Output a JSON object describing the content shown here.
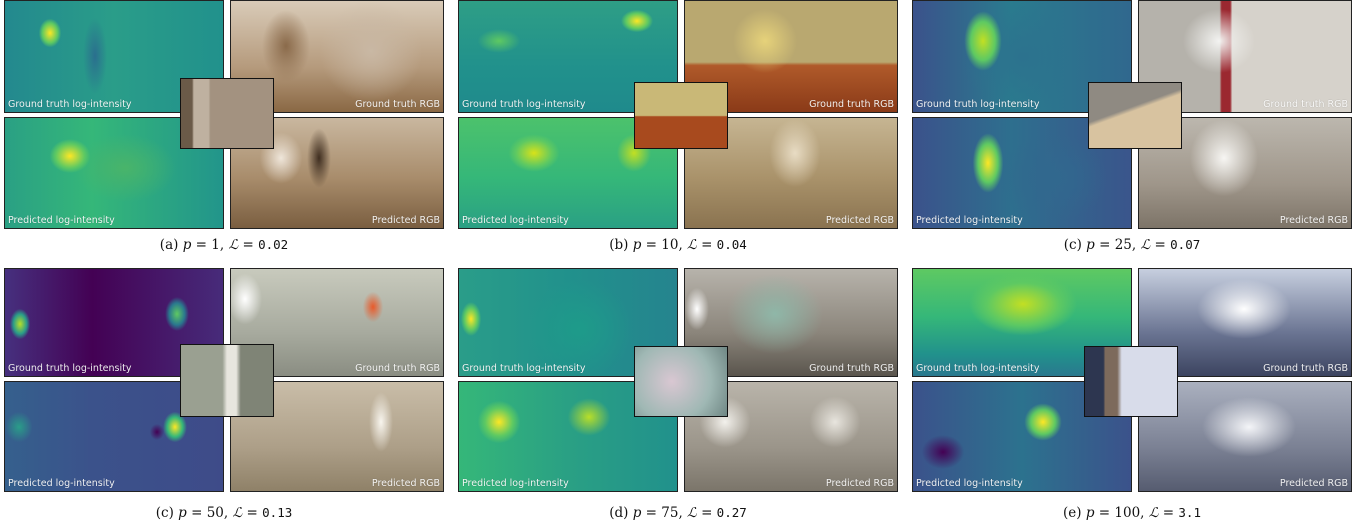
{
  "labels": {
    "gt_intensity": "Ground truth log-intensity",
    "gt_rgb": "Ground truth RGB",
    "pred_intensity": "Predicted log-intensity",
    "pred_rgb": "Predicted RGB"
  },
  "colors": {
    "viridis_dark": "#440154",
    "viridis_blue": "#3b528b",
    "viridis_teal": "#21918c",
    "viridis_green": "#5ec962",
    "viridis_yellow": "#fde725"
  },
  "panels": [
    {
      "id": "a",
      "tag": "(a)",
      "p": "1",
      "loss": "0.02"
    },
    {
      "id": "b",
      "tag": "(b)",
      "p": "10",
      "loss": "0.04"
    },
    {
      "id": "c1",
      "tag": "(c)",
      "p": "25",
      "loss": "0.07"
    },
    {
      "id": "c2",
      "tag": "(c)",
      "p": "50",
      "loss": "0.13"
    },
    {
      "id": "d",
      "tag": "(d)",
      "p": "75",
      "loss": "0.27"
    },
    {
      "id": "e",
      "tag": "(e)",
      "p": "100",
      "loss": "3.1"
    }
  ],
  "math": {
    "p_symbol": "p",
    "eq": "=",
    "loss_symbol": "ℒ",
    "sep": ","
  }
}
